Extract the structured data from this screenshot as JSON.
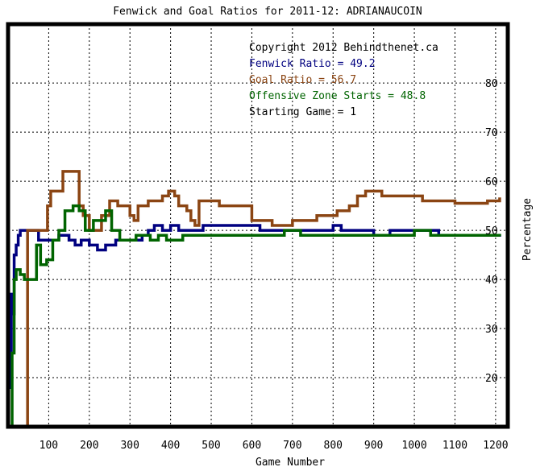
{
  "chart_data": {
    "type": "line",
    "title": "Fenwick and Goal Ratios for 2011-12: ADRIANAUCOIN",
    "xlabel": "Game Number",
    "ylabel": "Percentage",
    "xlim": [
      0,
      1230
    ],
    "ylim": [
      10,
      92
    ],
    "x_ticks": [
      100,
      200,
      300,
      400,
      500,
      600,
      700,
      800,
      900,
      1000,
      1100,
      1200
    ],
    "y_ticks": [
      20,
      30,
      40,
      50,
      60,
      70,
      80
    ],
    "grid": true,
    "legend_position": "top-right",
    "annotations": [
      {
        "text": "Copyright 2012 Behindthenet.ca",
        "color": "#000000"
      },
      {
        "text": "Fenwick Ratio = 49.2",
        "color": "#000080"
      },
      {
        "text": "Goal Ratio = 56.7",
        "color": "#8b4513"
      },
      {
        "text": "Offensive Zone Starts = 48.8",
        "color": "#006400"
      },
      {
        "text": "Starting Game = 1",
        "color": "#000000"
      }
    ],
    "series": [
      {
        "name": "Fenwick Ratio",
        "color": "#000080",
        "points": [
          [
            5,
            18
          ],
          [
            8,
            37
          ],
          [
            12,
            33
          ],
          [
            15,
            45
          ],
          [
            20,
            47
          ],
          [
            25,
            49
          ],
          [
            30,
            50
          ],
          [
            60,
            50
          ],
          [
            75,
            48
          ],
          [
            90,
            48
          ],
          [
            110,
            48
          ],
          [
            125,
            49
          ],
          [
            150,
            48
          ],
          [
            165,
            47
          ],
          [
            180,
            48
          ],
          [
            200,
            47
          ],
          [
            220,
            46
          ],
          [
            240,
            47
          ],
          [
            265,
            48
          ],
          [
            300,
            48
          ],
          [
            330,
            49
          ],
          [
            345,
            50
          ],
          [
            360,
            51
          ],
          [
            380,
            50
          ],
          [
            400,
            51
          ],
          [
            420,
            50
          ],
          [
            440,
            50
          ],
          [
            460,
            50
          ],
          [
            480,
            51
          ],
          [
            500,
            51
          ],
          [
            540,
            51
          ],
          [
            580,
            51
          ],
          [
            620,
            50
          ],
          [
            660,
            50
          ],
          [
            700,
            50
          ],
          [
            740,
            50
          ],
          [
            780,
            50
          ],
          [
            800,
            51
          ],
          [
            820,
            50
          ],
          [
            860,
            50
          ],
          [
            900,
            49
          ],
          [
            940,
            50
          ],
          [
            980,
            50
          ],
          [
            1020,
            50
          ],
          [
            1060,
            49
          ],
          [
            1100,
            49
          ],
          [
            1140,
            49
          ],
          [
            1180,
            49
          ],
          [
            1210,
            49.2
          ]
        ]
      },
      {
        "name": "Goal Ratio",
        "color": "#8b4513",
        "points": [
          [
            40,
            10
          ],
          [
            45,
            10
          ],
          [
            48,
            50
          ],
          [
            95,
            50
          ],
          [
            97,
            55
          ],
          [
            105,
            58
          ],
          [
            130,
            58
          ],
          [
            135,
            62
          ],
          [
            170,
            62
          ],
          [
            175,
            55
          ],
          [
            185,
            53
          ],
          [
            200,
            50
          ],
          [
            220,
            50
          ],
          [
            230,
            53
          ],
          [
            250,
            56
          ],
          [
            270,
            55
          ],
          [
            295,
            55
          ],
          [
            300,
            53
          ],
          [
            310,
            52
          ],
          [
            320,
            55
          ],
          [
            345,
            56
          ],
          [
            380,
            57
          ],
          [
            395,
            58
          ],
          [
            410,
            57
          ],
          [
            420,
            55
          ],
          [
            440,
            54
          ],
          [
            450,
            52
          ],
          [
            460,
            51
          ],
          [
            470,
            56
          ],
          [
            520,
            55
          ],
          [
            570,
            55
          ],
          [
            600,
            52
          ],
          [
            650,
            51
          ],
          [
            690,
            51
          ],
          [
            700,
            52
          ],
          [
            740,
            52
          ],
          [
            760,
            53
          ],
          [
            790,
            53
          ],
          [
            810,
            54
          ],
          [
            840,
            55
          ],
          [
            860,
            57
          ],
          [
            880,
            58
          ],
          [
            900,
            58
          ],
          [
            920,
            57
          ],
          [
            960,
            57
          ],
          [
            1000,
            57
          ],
          [
            1020,
            56
          ],
          [
            1060,
            56
          ],
          [
            1100,
            55.5
          ],
          [
            1140,
            55.5
          ],
          [
            1180,
            56
          ],
          [
            1210,
            56.7
          ]
        ]
      },
      {
        "name": "Offensive Zone Starts",
        "color": "#006400",
        "points": [
          [
            5,
            10
          ],
          [
            10,
            25
          ],
          [
            15,
            40
          ],
          [
            20,
            42
          ],
          [
            30,
            41
          ],
          [
            40,
            40
          ],
          [
            55,
            40
          ],
          [
            70,
            47
          ],
          [
            80,
            43
          ],
          [
            95,
            44
          ],
          [
            110,
            48
          ],
          [
            125,
            50
          ],
          [
            140,
            54
          ],
          [
            160,
            55
          ],
          [
            175,
            54
          ],
          [
            190,
            50
          ],
          [
            210,
            52
          ],
          [
            225,
            52
          ],
          [
            240,
            54
          ],
          [
            255,
            50
          ],
          [
            275,
            48
          ],
          [
            295,
            48
          ],
          [
            300,
            48
          ],
          [
            315,
            49
          ],
          [
            330,
            49
          ],
          [
            350,
            48
          ],
          [
            370,
            49
          ],
          [
            390,
            48
          ],
          [
            410,
            48
          ],
          [
            430,
            49
          ],
          [
            460,
            49
          ],
          [
            480,
            49
          ],
          [
            520,
            49
          ],
          [
            560,
            49
          ],
          [
            600,
            49
          ],
          [
            640,
            49
          ],
          [
            680,
            50
          ],
          [
            720,
            49
          ],
          [
            760,
            49
          ],
          [
            800,
            49
          ],
          [
            840,
            49
          ],
          [
            880,
            49
          ],
          [
            920,
            49
          ],
          [
            960,
            49
          ],
          [
            980,
            49
          ],
          [
            1000,
            50
          ],
          [
            1040,
            49
          ],
          [
            1080,
            49
          ],
          [
            1120,
            49
          ],
          [
            1160,
            49
          ],
          [
            1200,
            49
          ],
          [
            1210,
            48.8
          ]
        ]
      }
    ]
  }
}
